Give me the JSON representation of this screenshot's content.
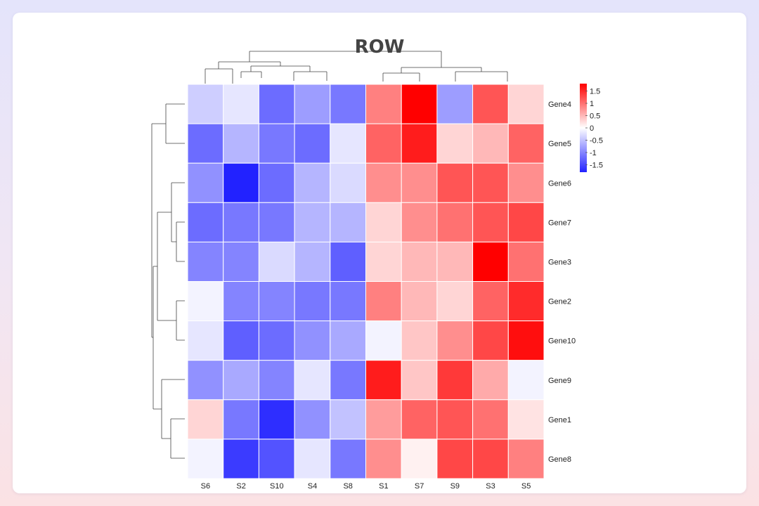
{
  "chart_data": {
    "type": "heatmap",
    "title": "ROW",
    "columns": [
      "S6",
      "S2",
      "S10",
      "S4",
      "S8",
      "S1",
      "S7",
      "S9",
      "S3",
      "S5"
    ],
    "rows": [
      "Gene4",
      "Gene5",
      "Gene6",
      "Gene7",
      "Gene3",
      "Gene2",
      "Gene10",
      "Gene9",
      "Gene1",
      "Gene8"
    ],
    "values": [
      [
        -0.4,
        -0.2,
        -1.2,
        -0.8,
        -1.1,
        0.9,
        1.8,
        -0.8,
        1.2,
        0.3
      ],
      [
        -1.2,
        -0.6,
        -1.1,
        -1.2,
        -0.2,
        1.1,
        1.6,
        0.3,
        0.5,
        1.1
      ],
      [
        -0.9,
        -1.8,
        -1.2,
        -0.6,
        -0.3,
        0.8,
        0.8,
        1.2,
        1.2,
        0.8
      ],
      [
        -1.2,
        -1.1,
        -1.1,
        -0.6,
        -0.6,
        0.3,
        0.8,
        1.0,
        1.2,
        1.3
      ],
      [
        -1.0,
        -1.0,
        -0.3,
        -0.6,
        -1.3,
        0.3,
        0.5,
        0.5,
        1.8,
        1.0
      ],
      [
        -0.1,
        -1.0,
        -1.0,
        -1.1,
        -1.1,
        0.9,
        0.5,
        0.3,
        1.1,
        1.5
      ],
      [
        -0.2,
        -1.3,
        -1.2,
        -0.9,
        -0.7,
        -0.1,
        0.4,
        0.8,
        1.3,
        1.7
      ],
      [
        -0.9,
        -0.7,
        -1.0,
        -0.2,
        -1.1,
        1.6,
        0.4,
        1.4,
        0.6,
        -0.1
      ],
      [
        0.3,
        -1.1,
        -1.7,
        -0.9,
        -0.5,
        0.7,
        1.1,
        1.2,
        1.0,
        0.2
      ],
      [
        -0.1,
        -1.6,
        -1.4,
        -0.2,
        -1.1,
        0.8,
        0.1,
        1.3,
        1.3,
        0.9
      ]
    ],
    "legend": {
      "ticks": [
        "1.5",
        "1",
        "0.5",
        "0",
        "-0.5",
        "-1",
        "-1.5"
      ],
      "range": [
        -1.8,
        1.8
      ],
      "colors": {
        "low": "#2222ff",
        "mid": "#ffffff",
        "high": "#ff0000"
      }
    },
    "grid": true,
    "legend_position": "right"
  }
}
